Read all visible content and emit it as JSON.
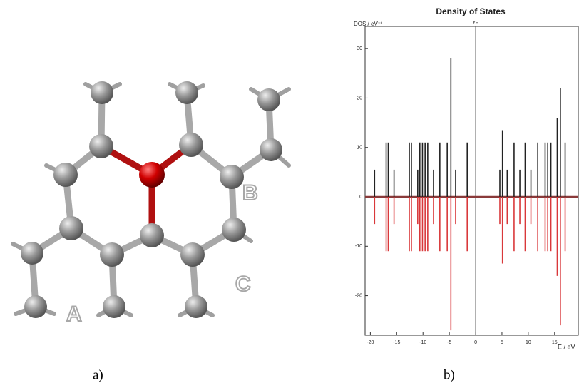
{
  "molecule": {
    "labels": [
      "A",
      "B",
      "C"
    ]
  },
  "captions": [
    "a)",
    "b)"
  ],
  "chart_data": {
    "type": "stem",
    "title": "Density of States",
    "x_label": "E / eV",
    "y_label": "DOS / eV⁻¹",
    "annotations": [
      {
        "text": "εF",
        "x": 0
      }
    ],
    "x": [
      -19.2,
      -17.0,
      -16.6,
      -15.5,
      -12.6,
      -12.2,
      -11.0,
      -10.6,
      -10.1,
      -9.6,
      -9.1,
      -8.0,
      -6.8,
      -5.4,
      -4.7,
      -3.8,
      -1.6,
      4.6,
      5.1,
      6.0,
      7.3,
      8.4,
      9.4,
      10.5,
      11.8,
      13.2,
      13.7,
      14.3,
      15.5,
      16.1,
      17.0
    ],
    "series": [
      {
        "color": "#222222",
        "values": [
          5.5,
          11,
          11,
          5.5,
          11,
          11,
          5.5,
          11,
          11,
          11,
          11,
          5.5,
          11,
          11,
          28,
          5.5,
          11,
          5.5,
          13.5,
          5.5,
          11,
          5.5,
          11,
          5.5,
          11,
          11,
          11,
          11,
          16,
          22,
          11
        ]
      },
      {
        "color": "#d9383a",
        "values": [
          -5.5,
          -11,
          -11,
          -5.5,
          -11,
          -11,
          -5.5,
          -11,
          -11,
          -11,
          -11,
          -5.5,
          -11,
          -11,
          -27,
          -5.5,
          -11,
          -5.5,
          -13.5,
          -5.5,
          -11,
          -5.5,
          -11,
          -5.5,
          -11,
          -11,
          -11,
          -11,
          -16,
          -26,
          -11
        ]
      }
    ],
    "xlim": [
      -21,
      19.5
    ],
    "ylim": [
      -28,
      34.5
    ],
    "xticks": [
      -20,
      -15,
      -10,
      -5,
      0,
      5,
      10,
      15
    ],
    "yticks": [
      -20,
      -10,
      0,
      10,
      20,
      30
    ]
  }
}
